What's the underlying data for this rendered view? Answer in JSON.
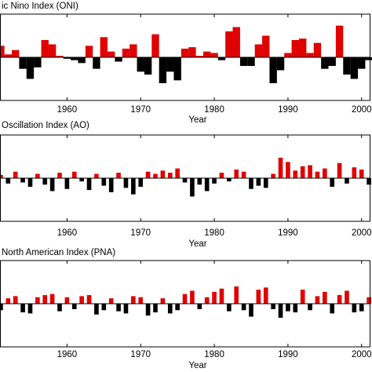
{
  "chart_data": [
    {
      "type": "bar",
      "title": "ic Nino Index (ONI)",
      "x_label": "Year",
      "x": [
        1951,
        1952,
        1953,
        1954,
        1955,
        1956,
        1957,
        1958,
        1959,
        1960,
        1961,
        1962,
        1963,
        1964,
        1965,
        1966,
        1967,
        1968,
        1969,
        1970,
        1971,
        1972,
        1973,
        1974,
        1975,
        1976,
        1977,
        1978,
        1979,
        1980,
        1981,
        1982,
        1983,
        1984,
        1985,
        1986,
        1987,
        1988,
        1989,
        1990,
        1991,
        1992,
        1993,
        1994,
        1995,
        1996,
        1997,
        1998,
        1999,
        2000,
        2001
      ],
      "values": [
        0.8,
        0.2,
        0.5,
        -0.8,
        -1.5,
        -0.7,
        1.2,
        0.9,
        0.1,
        -0.1,
        -0.2,
        -0.4,
        0.8,
        -0.8,
        1.4,
        0.4,
        -0.3,
        0.6,
        0.9,
        -1.0,
        -1.2,
        1.6,
        -1.8,
        -1.0,
        -1.6,
        0.6,
        0.7,
        0.1,
        0.4,
        0.3,
        -0.2,
        1.8,
        2.1,
        -0.6,
        -0.6,
        0.9,
        1.5,
        -1.8,
        -0.9,
        0.3,
        1.2,
        1.3,
        0.3,
        1.0,
        -0.8,
        -0.6,
        2.2,
        -1.2,
        -1.5,
        -0.8,
        -0.2
      ],
      "positive_color": "#e00000",
      "negative_color": "#000000",
      "xlim": [
        1950.9,
        2001.2
      ],
      "xticks": [
        1960,
        1970,
        1980,
        1990,
        2000
      ],
      "ylim": [
        -3,
        3
      ]
    },
    {
      "type": "bar",
      "title": "Oscillation Index (AO)",
      "x_label": "Year",
      "x": [
        1951,
        1952,
        1953,
        1954,
        1955,
        1956,
        1957,
        1958,
        1959,
        1960,
        1961,
        1962,
        1963,
        1964,
        1965,
        1966,
        1967,
        1968,
        1969,
        1970,
        1971,
        1972,
        1973,
        1974,
        1975,
        1976,
        1977,
        1978,
        1979,
        1980,
        1981,
        1982,
        1983,
        1984,
        1985,
        1986,
        1987,
        1988,
        1989,
        1990,
        1991,
        1992,
        1993,
        1994,
        1995,
        1996,
        1997,
        1998,
        1999,
        2000,
        2001
      ],
      "values": [
        0.3,
        -0.5,
        0.6,
        -0.4,
        -0.8,
        0.4,
        -0.6,
        -1.2,
        0.5,
        -1.0,
        0.6,
        -0.3,
        -1.1,
        0.4,
        -0.7,
        -1.3,
        0.5,
        -0.9,
        -1.5,
        -0.8,
        0.6,
        0.4,
        0.7,
        0.5,
        0.9,
        -0.4,
        -1.7,
        -0.6,
        -1.2,
        -0.5,
        0.5,
        -0.3,
        0.8,
        0.6,
        -1.0,
        -0.7,
        -0.9,
        0.4,
        1.9,
        1.5,
        0.7,
        1.1,
        1.2,
        0.6,
        0.9,
        -0.8,
        1.4,
        -0.5,
        1.0,
        0.8,
        -0.6
      ],
      "positive_color": "#e00000",
      "negative_color": "#000000",
      "xlim": [
        1950.9,
        2001.2
      ],
      "xticks": [
        1960,
        1970,
        1980,
        1990,
        2000
      ],
      "ylim": [
        -4,
        4
      ]
    },
    {
      "type": "bar",
      "title": "North American Index (PNA)",
      "x_label": "Year",
      "x": [
        1951,
        1952,
        1953,
        1954,
        1955,
        1956,
        1957,
        1958,
        1959,
        1960,
        1961,
        1962,
        1963,
        1964,
        1965,
        1966,
        1967,
        1968,
        1969,
        1970,
        1971,
        1972,
        1973,
        1974,
        1975,
        1976,
        1977,
        1978,
        1979,
        1980,
        1981,
        1982,
        1983,
        1984,
        1985,
        1986,
        1987,
        1988,
        1989,
        1990,
        1991,
        1992,
        1993,
        1994,
        1995,
        1996,
        1997,
        1998,
        1999,
        2000,
        2001
      ],
      "values": [
        -0.6,
        0.5,
        0.7,
        -0.8,
        -0.9,
        0.6,
        0.8,
        0.9,
        -0.7,
        0.6,
        -0.5,
        0.7,
        0.8,
        -1.0,
        -0.6,
        0.5,
        -0.7,
        -0.9,
        0.7,
        0.6,
        -1.1,
        -0.8,
        0.5,
        -0.9,
        -0.6,
        0.9,
        1.2,
        -0.5,
        0.6,
        1.1,
        1.4,
        -0.7,
        1.6,
        -0.6,
        -1.2,
        1.3,
        1.5,
        -0.5,
        -1.3,
        -0.7,
        -0.8,
        1.3,
        -0.6,
        0.7,
        1.1,
        -0.9,
        0.8,
        1.2,
        -0.8,
        -0.7,
        0.6
      ],
      "positive_color": "#e00000",
      "negative_color": "#000000",
      "xlim": [
        1950.9,
        2001.2
      ],
      "xticks": [
        1960,
        1970,
        1980,
        1990,
        2000
      ],
      "ylim": [
        -4,
        4
      ]
    }
  ]
}
